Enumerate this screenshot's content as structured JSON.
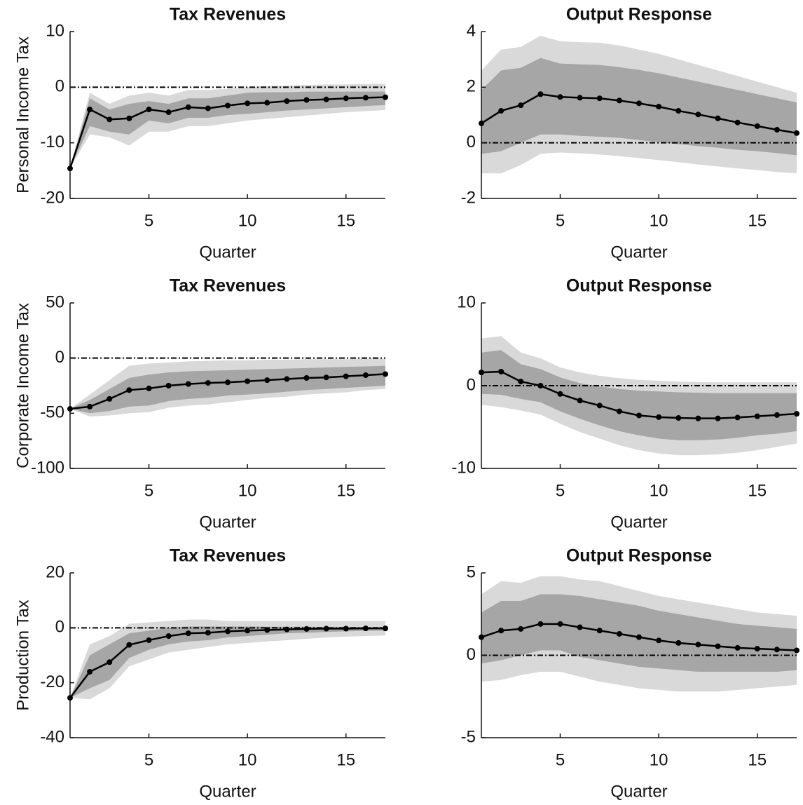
{
  "chart_data": [
    {
      "type": "line",
      "title": "Tax Revenues",
      "xlabel": "Quarter",
      "ylabel": "Personal Income Tax",
      "x": [
        1,
        2,
        3,
        4,
        5,
        6,
        7,
        8,
        9,
        10,
        11,
        12,
        13,
        14,
        15,
        16,
        17
      ],
      "xlim": [
        1,
        17
      ],
      "xticks": [
        5,
        10,
        15
      ],
      "ylim": [
        -20,
        10
      ],
      "yticks": [
        -20,
        -10,
        0,
        10
      ],
      "hline": 0,
      "bands": [
        {
          "color": "#d9d9d9",
          "upper": [
            -14.6,
            -1,
            -3,
            -1.5,
            -1,
            -1.5,
            -0.5,
            -0.5,
            -0.3,
            0,
            0.2,
            0.3,
            0.4,
            0.5,
            0.5,
            0.6,
            0.6
          ],
          "lower": [
            -14.6,
            -8.5,
            -9,
            -10.5,
            -8,
            -8,
            -7,
            -7,
            -6.5,
            -6,
            -5.7,
            -5.4,
            -5.1,
            -4.8,
            -4.5,
            -4.3,
            -4.1
          ]
        },
        {
          "color": "#a6a6a6",
          "upper": [
            -14.6,
            -2,
            -4,
            -3,
            -2.5,
            -3,
            -2,
            -2,
            -1.5,
            -1,
            -0.9,
            -0.9,
            -0.8,
            -0.8,
            -0.8,
            -0.8,
            -0.8
          ],
          "lower": [
            -14.6,
            -7,
            -8,
            -8.5,
            -6,
            -6.5,
            -5.5,
            -5.5,
            -5,
            -4.8,
            -4.5,
            -4.2,
            -4,
            -3.8,
            -3.6,
            -3.4,
            -3.2
          ]
        }
      ],
      "series": [
        {
          "color": "#000000",
          "values": [
            -14.6,
            -4,
            -5.8,
            -5.6,
            -4,
            -4.5,
            -3.6,
            -3.8,
            -3.3,
            -2.9,
            -2.8,
            -2.5,
            -2.3,
            -2.2,
            -2,
            -1.9,
            -1.8
          ]
        }
      ]
    },
    {
      "type": "line",
      "title": "Output Response",
      "xlabel": "Quarter",
      "x": [
        1,
        2,
        3,
        4,
        5,
        6,
        7,
        8,
        9,
        10,
        11,
        12,
        13,
        14,
        15,
        16,
        17
      ],
      "xlim": [
        1,
        17
      ],
      "xticks": [
        5,
        10,
        15
      ],
      "ylim": [
        -2,
        4
      ],
      "yticks": [
        -2,
        0,
        2,
        4
      ],
      "hline": 0,
      "bands": [
        {
          "color": "#d9d9d9",
          "upper": [
            2.6,
            3.35,
            3.45,
            3.85,
            3.65,
            3.62,
            3.6,
            3.5,
            3.35,
            3.2,
            3,
            2.8,
            2.6,
            2.4,
            2.2,
            2,
            1.8
          ],
          "lower": [
            -1.1,
            -1.1,
            -0.8,
            -0.4,
            -0.35,
            -0.38,
            -0.42,
            -0.48,
            -0.55,
            -0.62,
            -0.7,
            -0.78,
            -0.85,
            -0.92,
            -0.98,
            -1.05,
            -1.1
          ]
        },
        {
          "color": "#a6a6a6",
          "upper": [
            1.9,
            2.6,
            2.7,
            3.05,
            2.85,
            2.82,
            2.8,
            2.72,
            2.62,
            2.5,
            2.35,
            2.2,
            2.05,
            1.9,
            1.75,
            1.6,
            1.45
          ],
          "lower": [
            -0.4,
            -0.3,
            0,
            0.3,
            0.3,
            0.25,
            0.22,
            0.18,
            0.1,
            0.02,
            -0.05,
            -0.12,
            -0.18,
            -0.25,
            -0.3,
            -0.37,
            -0.45
          ]
        }
      ],
      "series": [
        {
          "color": "#000000",
          "values": [
            0.7,
            1.15,
            1.35,
            1.75,
            1.65,
            1.62,
            1.6,
            1.52,
            1.42,
            1.3,
            1.15,
            1.02,
            0.88,
            0.73,
            0.6,
            0.47,
            0.35
          ]
        }
      ]
    },
    {
      "type": "line",
      "title": "Tax Revenues",
      "xlabel": "Quarter",
      "ylabel": "Corporate Income Tax",
      "x": [
        1,
        2,
        3,
        4,
        5,
        6,
        7,
        8,
        9,
        10,
        11,
        12,
        13,
        14,
        15,
        16,
        17
      ],
      "xlim": [
        1,
        17
      ],
      "xticks": [
        5,
        10,
        15
      ],
      "ylim": [
        -100,
        50
      ],
      "yticks": [
        -100,
        -50,
        0,
        50
      ],
      "hline": 0,
      "bands": [
        {
          "color": "#d9d9d9",
          "upper": [
            -46,
            -33,
            -20,
            -7,
            -5,
            -4,
            -3,
            -2.5,
            -2,
            -2,
            -1.5,
            -1.5,
            -1,
            -1,
            -1,
            -0.5,
            -0.5
          ],
          "lower": [
            -46,
            -53,
            -52,
            -50,
            -49,
            -45,
            -43,
            -42,
            -40,
            -38,
            -36,
            -35,
            -33,
            -32,
            -31,
            -29,
            -28
          ]
        },
        {
          "color": "#a6a6a6",
          "upper": [
            -46,
            -38,
            -28,
            -18,
            -15,
            -13,
            -12,
            -11.5,
            -11,
            -10.5,
            -10,
            -9.5,
            -9,
            -8.5,
            -8,
            -7.5,
            -7
          ],
          "lower": [
            -46,
            -50,
            -48,
            -44,
            -43,
            -39,
            -37,
            -36,
            -34,
            -33,
            -32,
            -30.5,
            -29,
            -28,
            -27,
            -26,
            -25
          ]
        }
      ],
      "series": [
        {
          "color": "#000000",
          "values": [
            -46,
            -44,
            -37,
            -29,
            -27.5,
            -25,
            -23.5,
            -22.5,
            -22,
            -21,
            -20,
            -19,
            -18,
            -17.5,
            -16.5,
            -15.5,
            -14.5
          ]
        }
      ]
    },
    {
      "type": "line",
      "title": "Output Response",
      "xlabel": "Quarter",
      "x": [
        1,
        2,
        3,
        4,
        5,
        6,
        7,
        8,
        9,
        10,
        11,
        12,
        13,
        14,
        15,
        16,
        17
      ],
      "xlim": [
        1,
        17
      ],
      "xticks": [
        5,
        10,
        15
      ],
      "ylim": [
        -10,
        10
      ],
      "yticks": [
        -10,
        0,
        10
      ],
      "hline": 0,
      "bands": [
        {
          "color": "#d9d9d9",
          "upper": [
            5.7,
            6,
            4,
            3.3,
            2.2,
            1.6,
            1.2,
            0.9,
            0.7,
            0.6,
            0.5,
            0.45,
            0.4,
            0.4,
            0.4,
            0.4,
            0.4
          ],
          "lower": [
            -2.3,
            -2.6,
            -3,
            -3.5,
            -4.6,
            -5.6,
            -6.4,
            -7.2,
            -7.8,
            -8.2,
            -8.4,
            -8.4,
            -8.3,
            -8.1,
            -7.8,
            -7.4,
            -7
          ]
        },
        {
          "color": "#a6a6a6",
          "upper": [
            4,
            4.3,
            2.6,
            2,
            1,
            0.3,
            -0.1,
            -0.4,
            -0.6,
            -0.7,
            -0.8,
            -0.85,
            -0.9,
            -0.9,
            -0.9,
            -0.9,
            -0.9
          ],
          "lower": [
            -1,
            -1.1,
            -1.6,
            -2,
            -3.1,
            -4,
            -4.8,
            -5.5,
            -6,
            -6.4,
            -6.6,
            -6.6,
            -6.5,
            -6.3,
            -6,
            -5.8,
            -5.5
          ]
        }
      ],
      "series": [
        {
          "color": "#000000",
          "values": [
            1.6,
            1.7,
            0.5,
            0,
            -1,
            -1.8,
            -2.4,
            -3.1,
            -3.6,
            -3.8,
            -3.9,
            -3.95,
            -3.95,
            -3.85,
            -3.7,
            -3.55,
            -3.4
          ]
        }
      ]
    },
    {
      "type": "line",
      "title": "Tax Revenues",
      "xlabel": "Quarter",
      "ylabel": "Production Tax",
      "x": [
        1,
        2,
        3,
        4,
        5,
        6,
        7,
        8,
        9,
        10,
        11,
        12,
        13,
        14,
        15,
        16,
        17
      ],
      "xlim": [
        1,
        17
      ],
      "xticks": [
        5,
        10,
        15
      ],
      "ylim": [
        -40,
        20
      ],
      "yticks": [
        -40,
        -20,
        0,
        20
      ],
      "hline": 0,
      "bands": [
        {
          "color": "#d9d9d9",
          "upper": [
            -25.5,
            -6,
            -3,
            1.5,
            2,
            2.5,
            3,
            3,
            2.5,
            2.5,
            2.5,
            2.5,
            2.5,
            2.5,
            2.5,
            2.5,
            2.5
          ],
          "lower": [
            -25.5,
            -26,
            -22,
            -14,
            -11.5,
            -9,
            -8,
            -7,
            -6,
            -5.5,
            -5,
            -4.5,
            -4,
            -3.5,
            -3.2,
            -3,
            -2.8
          ]
        },
        {
          "color": "#a6a6a6",
          "upper": [
            -25.5,
            -10,
            -6,
            -2,
            -1,
            0,
            0.5,
            0.5,
            0.5,
            0.5,
            0.4,
            0.4,
            0.4,
            0.3,
            0.3,
            0.3,
            0.3
          ],
          "lower": [
            -25.5,
            -22,
            -19,
            -11,
            -8,
            -6,
            -5,
            -4.5,
            -3.5,
            -3,
            -2.5,
            -2,
            -1.8,
            -1.5,
            -1.3,
            -1.1,
            -1
          ]
        }
      ],
      "series": [
        {
          "color": "#000000",
          "values": [
            -25.5,
            -16,
            -12.5,
            -6.2,
            -4.5,
            -3,
            -2,
            -1.8,
            -1.3,
            -1,
            -0.8,
            -0.6,
            -0.4,
            -0.3,
            -0.3,
            -0.2,
            -0.2
          ]
        }
      ]
    },
    {
      "type": "line",
      "title": "Output Response",
      "xlabel": "Quarter",
      "x": [
        1,
        2,
        3,
        4,
        5,
        6,
        7,
        8,
        9,
        10,
        11,
        12,
        13,
        14,
        15,
        16,
        17
      ],
      "xlim": [
        1,
        17
      ],
      "xticks": [
        5,
        10,
        15
      ],
      "ylim": [
        -5,
        5
      ],
      "yticks": [
        -5,
        0,
        5
      ],
      "hline": 0,
      "bands": [
        {
          "color": "#d9d9d9",
          "upper": [
            3.7,
            4.5,
            4.4,
            4.8,
            4.8,
            4.6,
            4.5,
            4.2,
            3.9,
            3.6,
            3.4,
            3.2,
            3,
            2.8,
            2.6,
            2.5,
            2.4
          ],
          "lower": [
            -1.6,
            -1.5,
            -1.2,
            -1,
            -1,
            -1.3,
            -1.6,
            -1.8,
            -2,
            -2.1,
            -2.2,
            -2.2,
            -2.2,
            -2.1,
            -2,
            -1.9,
            -1.8
          ]
        },
        {
          "color": "#a6a6a6",
          "upper": [
            2.6,
            3.3,
            3.3,
            3.7,
            3.7,
            3.6,
            3.4,
            3.2,
            3,
            2.7,
            2.5,
            2.3,
            2.1,
            1.9,
            1.8,
            1.7,
            1.6
          ],
          "lower": [
            -0.5,
            -0.3,
            0,
            0.3,
            0.3,
            -0.1,
            -0.3,
            -0.5,
            -0.7,
            -0.8,
            -0.9,
            -1,
            -1,
            -1,
            -1,
            -1,
            -0.9
          ]
        }
      ],
      "series": [
        {
          "color": "#000000",
          "values": [
            1.1,
            1.5,
            1.6,
            1.9,
            1.9,
            1.7,
            1.5,
            1.3,
            1.1,
            0.9,
            0.75,
            0.65,
            0.55,
            0.45,
            0.4,
            0.35,
            0.3
          ]
        }
      ]
    }
  ]
}
